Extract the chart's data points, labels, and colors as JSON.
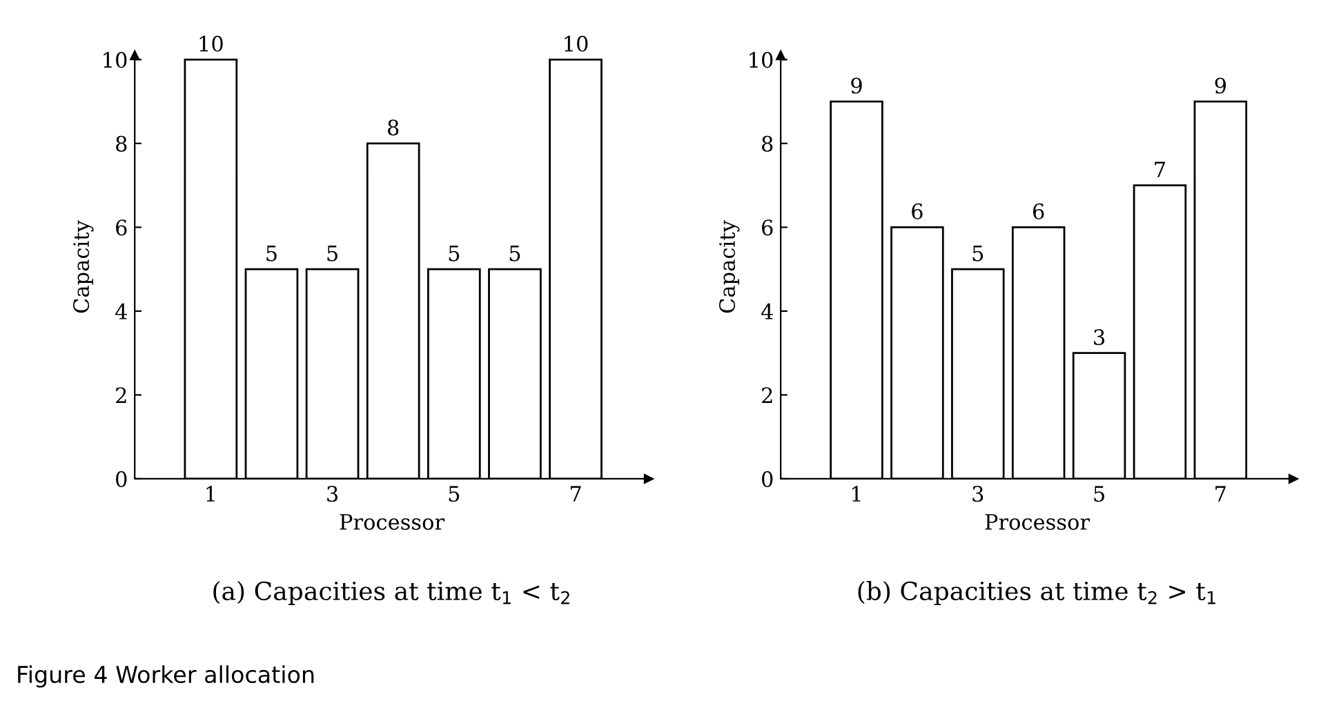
{
  "chart_data": [
    {
      "type": "bar",
      "title": "(a) Capacities at time t$_{1}$ < t$_{2}$",
      "xlabel": "Processor",
      "ylabel": "Capacity",
      "x": [
        1,
        2,
        3,
        4,
        5,
        6,
        7
      ],
      "series": [
        {
          "color": "#ffffff",
          "values": [
            10,
            5,
            5,
            8,
            5,
            5,
            10
          ]
        }
      ],
      "xlim": [
        -0.25,
        8.2
      ],
      "xticks": [
        1,
        3,
        5,
        7
      ],
      "ylim": [
        0,
        10.1
      ],
      "yticks": [
        0,
        2,
        4,
        6,
        8,
        10
      ],
      "data_labels": true,
      "grid": false,
      "legend": false,
      "annotations": [
        "Figure 4 Worker allocation"
      ]
    },
    {
      "type": "bar",
      "title": "(b) Capacities at time t$_{2}$ > t$_{1}$",
      "xlabel": "Processor",
      "ylabel": "Capacity",
      "x": [
        1,
        2,
        3,
        4,
        5,
        6,
        7
      ],
      "series": [
        {
          "color": "#ffffff",
          "values": [
            9,
            6,
            5,
            6,
            3,
            7,
            9
          ]
        }
      ],
      "xlim": [
        -0.25,
        8.2
      ],
      "xticks": [
        1,
        3,
        5,
        7
      ],
      "ylim": [
        0,
        10.1
      ],
      "yticks": [
        0,
        2,
        4,
        6,
        8,
        10
      ],
      "data_labels": true,
      "grid": false,
      "legend": false
    }
  ]
}
